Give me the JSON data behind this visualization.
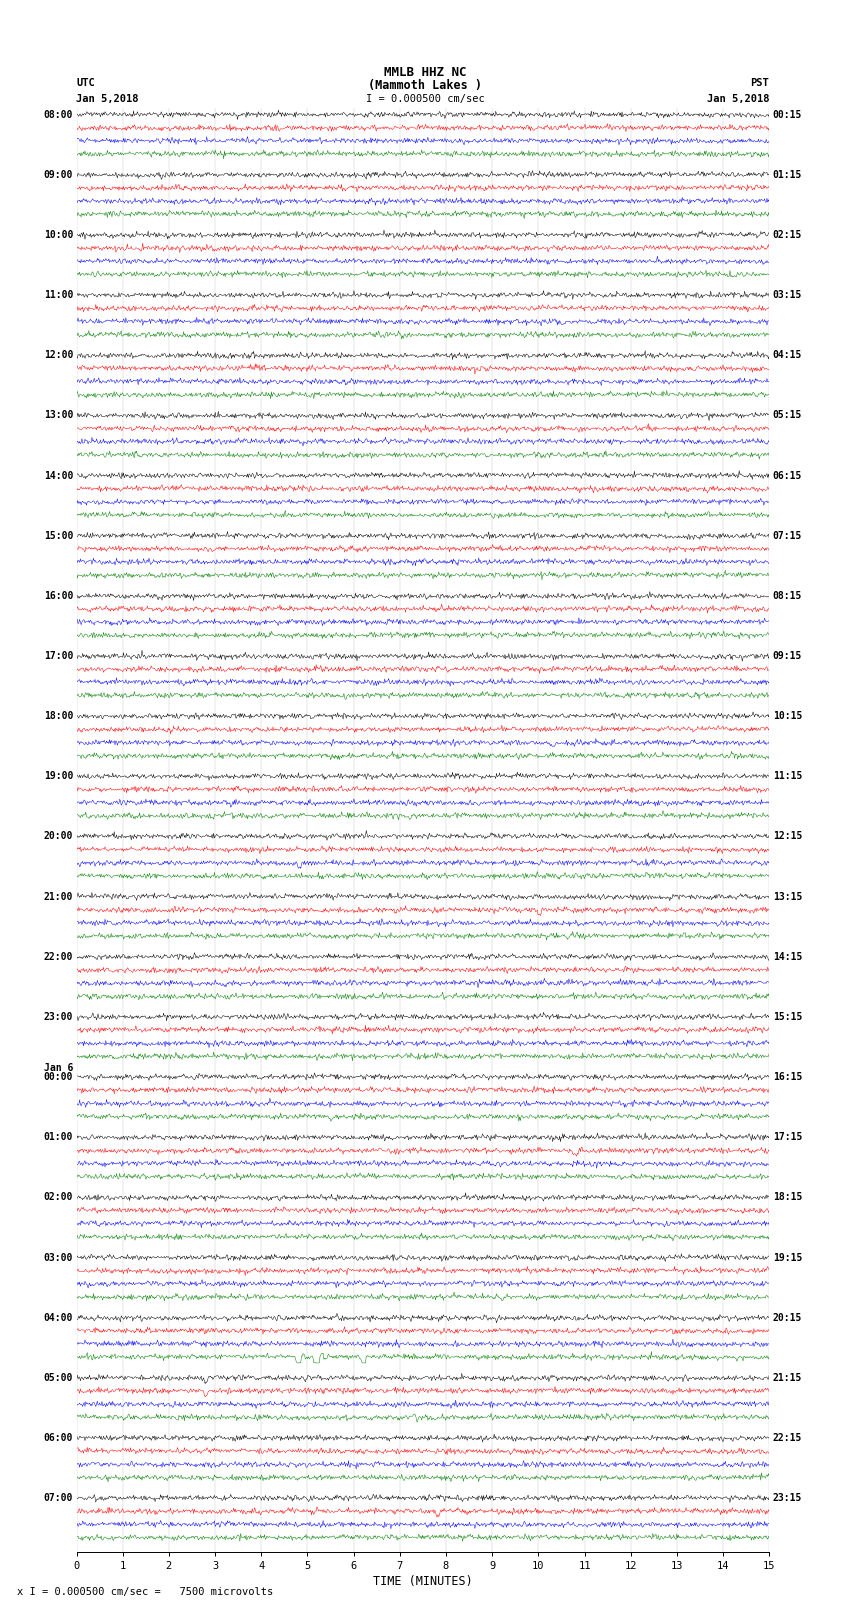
{
  "title_line1": "MMLB HHZ NC",
  "title_line2": "(Mammoth Lakes )",
  "title_scale": "I = 0.000500 cm/sec",
  "left_header_line1": "UTC",
  "left_header_line2": "Jan 5,2018",
  "right_header_line1": "PST",
  "right_header_line2": "Jan 5,2018",
  "xlabel": "TIME (MINUTES)",
  "bottom_note": "x I = 0.000500 cm/sec =   7500 microvolts",
  "num_rows": 24,
  "minutes_per_row": 15,
  "trace_colors": [
    "black",
    "red",
    "blue",
    "green"
  ],
  "bg_color": "#ffffff",
  "xlim": [
    0,
    15
  ],
  "xticks": [
    0,
    1,
    2,
    3,
    4,
    5,
    6,
    7,
    8,
    9,
    10,
    11,
    12,
    13,
    14,
    15
  ],
  "left_labels_utc": [
    "08:00",
    "09:00",
    "10:00",
    "11:00",
    "12:00",
    "13:00",
    "14:00",
    "15:00",
    "16:00",
    "17:00",
    "18:00",
    "19:00",
    "20:00",
    "21:00",
    "22:00",
    "23:00",
    "Jan 6\n00:00",
    "01:00",
    "02:00",
    "03:00",
    "04:00",
    "05:00",
    "06:00",
    "07:00"
  ],
  "right_labels_pst": [
    "00:15",
    "01:15",
    "02:15",
    "03:15",
    "04:15",
    "05:15",
    "06:15",
    "07:15",
    "08:15",
    "09:15",
    "10:15",
    "11:15",
    "12:15",
    "13:15",
    "14:15",
    "15:15",
    "16:15",
    "17:15",
    "18:15",
    "19:15",
    "20:15",
    "21:15",
    "22:15",
    "23:15"
  ],
  "events": [
    {
      "row": 3,
      "trace": 2,
      "minute": 10.5,
      "amp": 2.5
    },
    {
      "row": 8,
      "trace": 0,
      "minute": 1.8,
      "amp": 1.8
    },
    {
      "row": 9,
      "trace": 3,
      "minute": 5.8,
      "amp": 2.2
    },
    {
      "row": 9,
      "trace": 2,
      "minute": 2.3,
      "amp": 2.0
    },
    {
      "row": 10,
      "trace": 2,
      "minute": 10.3,
      "amp": 2.8
    },
    {
      "row": 11,
      "trace": 3,
      "minute": 7.2,
      "amp": 2.0
    },
    {
      "row": 12,
      "trace": 2,
      "minute": 4.8,
      "amp": 2.5
    },
    {
      "row": 13,
      "trace": 1,
      "minute": 10.0,
      "amp": 3.5
    },
    {
      "row": 13,
      "trace": 3,
      "minute": 10.6,
      "amp": 2.2
    },
    {
      "row": 14,
      "trace": 2,
      "minute": 3.2,
      "amp": 2.0
    },
    {
      "row": 16,
      "trace": 3,
      "minute": 5.5,
      "amp": 2.5
    },
    {
      "row": 17,
      "trace": 1,
      "minute": 10.8,
      "amp": 3.2
    },
    {
      "row": 19,
      "trace": 3,
      "minute": 9.2,
      "amp": 2.2
    },
    {
      "row": 21,
      "trace": 0,
      "minute": 2.8,
      "amp": 4.0
    },
    {
      "row": 24,
      "trace": 2,
      "minute": 6.8,
      "amp": 2.8
    },
    {
      "row": 20,
      "trace": 3,
      "minute": 4.8,
      "amp": 8.5
    },
    {
      "row": 20,
      "trace": 3,
      "minute": 5.2,
      "amp": 12.0
    },
    {
      "row": 20,
      "trace": 3,
      "minute": 6.2,
      "amp": 7.0
    },
    {
      "row": 21,
      "trace": 1,
      "minute": 2.8,
      "amp": 3.2
    },
    {
      "row": 23,
      "trace": 1,
      "minute": 7.8,
      "amp": 3.0
    }
  ]
}
